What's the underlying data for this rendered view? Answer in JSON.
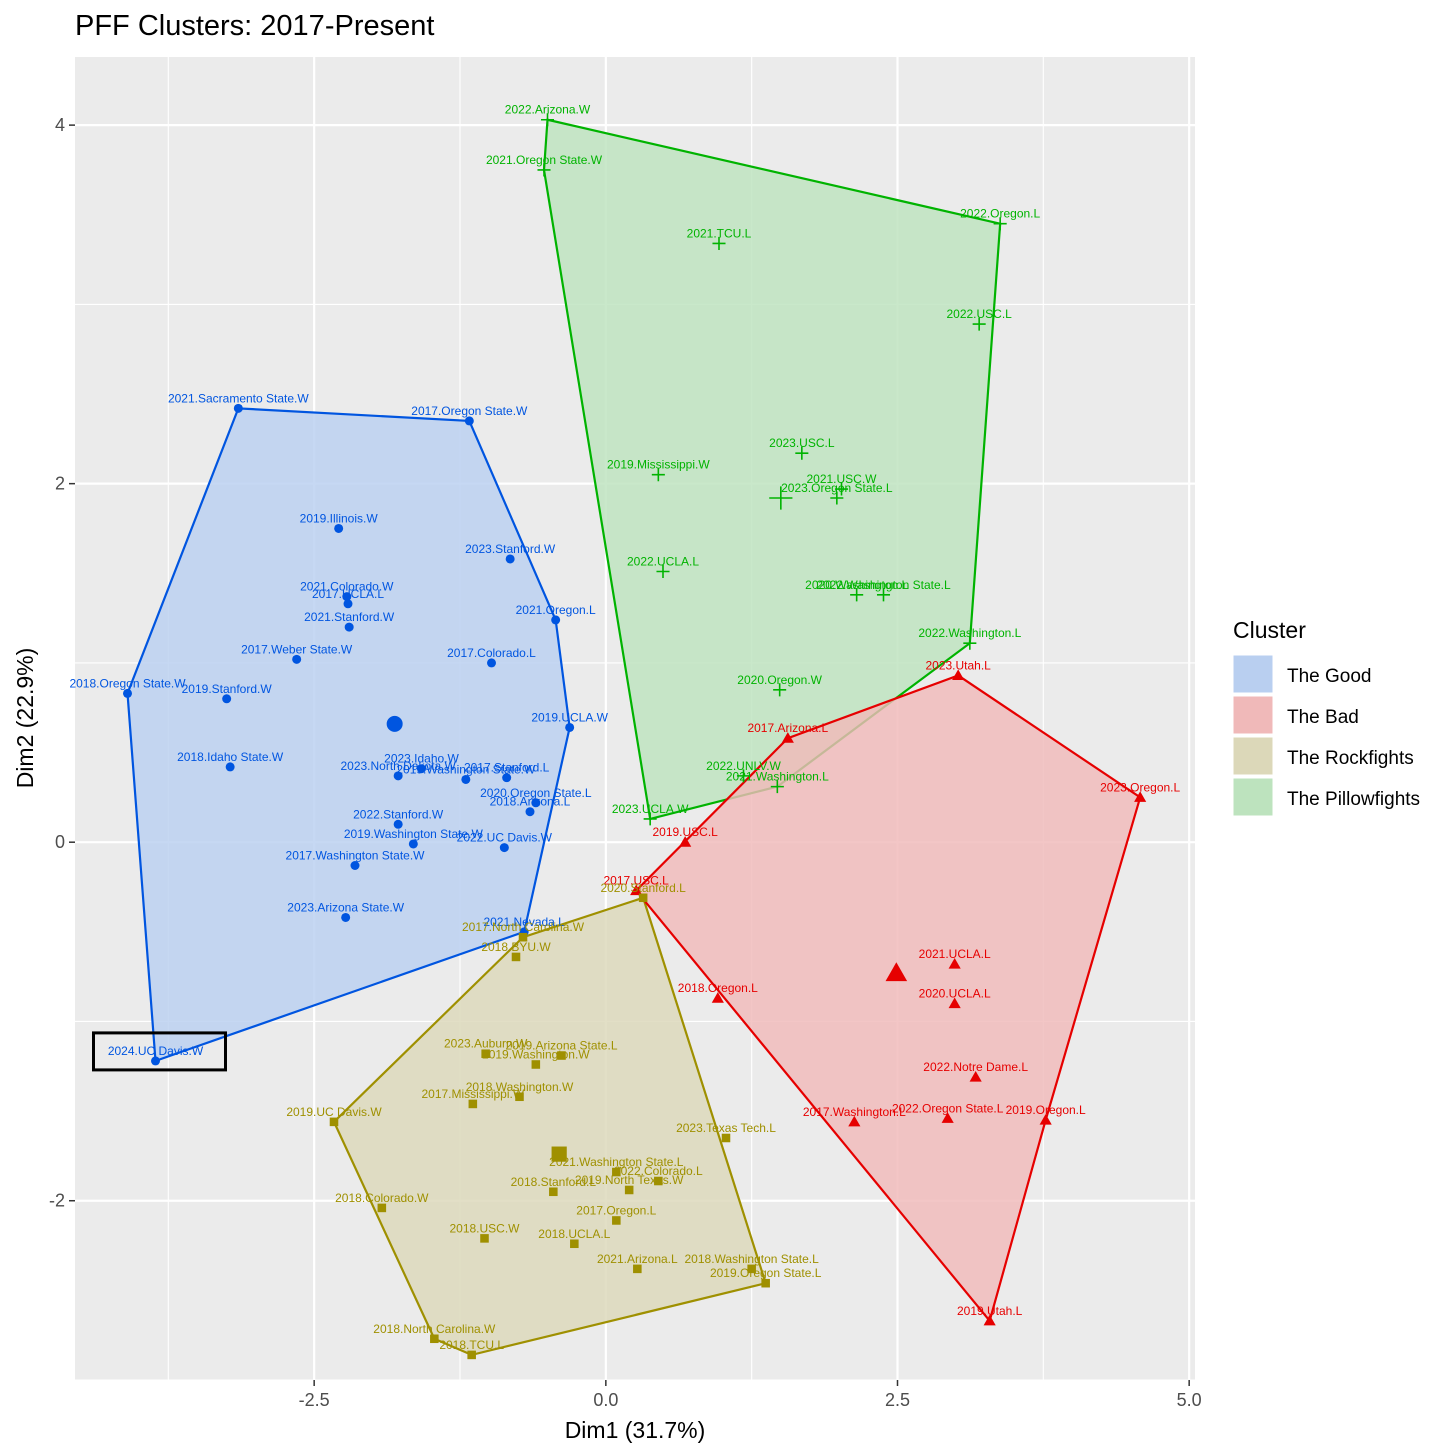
{
  "chart_data": {
    "type": "scatter",
    "title": "PFF Clusters: 2017-Present",
    "xlabel": "Dim1 (31.7%)",
    "ylabel": "Dim2 (22.9%)",
    "xlim": [
      -4.55,
      5.05
    ],
    "ylim": [
      -3.0,
      4.38
    ],
    "x_ticks": [
      -2.5,
      0.0,
      2.5,
      5.0
    ],
    "x_tick_labels": [
      "-2.5",
      "0.0",
      "2.5",
      "5.0"
    ],
    "y_ticks": [
      -2,
      0,
      2,
      4
    ],
    "y_tick_labels": [
      "-2",
      "0",
      "2",
      "4"
    ],
    "grid": true,
    "legend_title": "Cluster",
    "legend_position": "right",
    "highlight": {
      "label": "2024.UC Davis.W",
      "x": -3.86,
      "y": -1.22
    },
    "series": [
      {
        "name": "The Good",
        "color": "#0055e0",
        "fill": "#b9cff0",
        "shape": "circle",
        "hull": [
          [
            -4.1,
            0.83
          ],
          [
            -3.15,
            2.42
          ],
          [
            -1.17,
            2.35
          ],
          [
            -0.43,
            1.24
          ],
          [
            -0.31,
            0.64
          ],
          [
            -0.7,
            -0.5
          ],
          [
            -3.86,
            -1.22
          ]
        ],
        "centroid": [
          -1.81,
          0.66
        ],
        "points": [
          {
            "label": "2021.Sacramento State.W",
            "x": -3.15,
            "y": 2.42
          },
          {
            "label": "2017.Oregon State.W",
            "x": -1.17,
            "y": 2.35
          },
          {
            "label": "2019.Illinois.W",
            "x": -2.29,
            "y": 1.75
          },
          {
            "label": "2023.Stanford.W",
            "x": -0.82,
            "y": 1.58
          },
          {
            "label": "2021.Colorado.W",
            "x": -2.22,
            "y": 1.37
          },
          {
            "label": "2017.UCLA.L",
            "x": -2.21,
            "y": 1.33
          },
          {
            "label": "2021.Stanford.W",
            "x": -2.2,
            "y": 1.2
          },
          {
            "label": "2021.Oregon.L",
            "x": -0.43,
            "y": 1.24
          },
          {
            "label": "2017.Weber State.W",
            "x": -2.65,
            "y": 1.02
          },
          {
            "label": "2017.Colorado.L",
            "x": -0.98,
            "y": 1.0
          },
          {
            "label": "2018.Oregon State.W",
            "x": -4.1,
            "y": 0.83
          },
          {
            "label": "2019.Stanford.W",
            "x": -3.25,
            "y": 0.8
          },
          {
            "label": "2019.UCLA.W",
            "x": -0.31,
            "y": 0.64
          },
          {
            "label": "2018.Idaho State.W",
            "x": -3.22,
            "y": 0.42
          },
          {
            "label": "2023.Idaho.W",
            "x": -1.58,
            "y": 0.41
          },
          {
            "label": "2023.North Dakota.W",
            "x": -1.78,
            "y": 0.37
          },
          {
            "label": "2019.Washington State.W",
            "x": -1.2,
            "y": 0.35
          },
          {
            "label": "2017.Stanford.L",
            "x": -0.85,
            "y": 0.36
          },
          {
            "label": "2020.Oregon State.L",
            "x": -0.6,
            "y": 0.22
          },
          {
            "label": "2018.Arizona.L",
            "x": -0.65,
            "y": 0.17
          },
          {
            "label": "2022.Stanford.W",
            "x": -1.78,
            "y": 0.1
          },
          {
            "label": "2019.Washington State.W",
            "x": -1.65,
            "y": -0.01
          },
          {
            "label": "2022.UC Davis.W",
            "x": -0.87,
            "y": -0.03
          },
          {
            "label": "2017.Washington State.W",
            "x": -2.15,
            "y": -0.13
          },
          {
            "label": "2023.Arizona State.W",
            "x": -2.23,
            "y": -0.42
          },
          {
            "label": "2021.Nevada.L",
            "x": -0.7,
            "y": -0.5
          },
          {
            "label": "2024.UC Davis.W",
            "x": -3.86,
            "y": -1.22
          }
        ]
      },
      {
        "name": "The Bad",
        "color": "#e60000",
        "fill": "#f0b9b9",
        "shape": "triangle",
        "hull": [
          [
            3.02,
            0.93
          ],
          [
            4.58,
            0.25
          ],
          [
            3.77,
            -1.55
          ],
          [
            3.29,
            -2.67
          ],
          [
            0.26,
            -0.27
          ],
          [
            1.56,
            0.58
          ]
        ],
        "centroid": [
          2.49,
          -0.73
        ],
        "points": [
          {
            "label": "2023.Utah.L",
            "x": 3.02,
            "y": 0.93
          },
          {
            "label": "2017.Arizona.L",
            "x": 1.56,
            "y": 0.58
          },
          {
            "label": "2023.Oregon.L",
            "x": 4.58,
            "y": 0.25
          },
          {
            "label": "2019.USC.L",
            "x": 0.68,
            "y": 0.0
          },
          {
            "label": "2017.USC.L",
            "x": 0.26,
            "y": -0.27
          },
          {
            "label": "2021.UCLA.L",
            "x": 2.99,
            "y": -0.68
          },
          {
            "label": "2020.UCLA.L",
            "x": 2.99,
            "y": -0.9
          },
          {
            "label": "2018.Oregon.L",
            "x": 0.96,
            "y": -0.87
          },
          {
            "label": "2022.Notre Dame.L",
            "x": 3.17,
            "y": -1.31
          },
          {
            "label": "2017.Washington.L",
            "x": 2.13,
            "y": -1.56
          },
          {
            "label": "2022.Oregon State.L",
            "x": 2.93,
            "y": -1.54
          },
          {
            "label": "2019.Oregon.L",
            "x": 3.77,
            "y": -1.55
          },
          {
            "label": "2019.Utah.L",
            "x": 3.29,
            "y": -2.67
          }
        ]
      },
      {
        "name": "The Rockfights",
        "color": "#9f9000",
        "fill": "#dcd8b9",
        "shape": "square",
        "hull": [
          [
            0.32,
            -0.31
          ],
          [
            1.37,
            -2.46
          ],
          [
            -1.15,
            -2.86
          ],
          [
            -1.47,
            -2.77
          ],
          [
            -2.33,
            -1.56
          ],
          [
            -0.71,
            -0.53
          ]
        ],
        "centroid": [
          -0.4,
          -1.74
        ],
        "points": [
          {
            "label": "2020.Stanford.L",
            "x": 0.32,
            "y": -0.31
          },
          {
            "label": "2017.North Carolina.W",
            "x": -0.71,
            "y": -0.53
          },
          {
            "label": "2018.BYU.W",
            "x": -0.77,
            "y": -0.64
          },
          {
            "label": "2023.Auburn.W",
            "x": -1.03,
            "y": -1.18
          },
          {
            "label": "2019.Arizona State.L",
            "x": -0.38,
            "y": -1.19
          },
          {
            "label": "2019.Washington.W",
            "x": -0.6,
            "y": -1.24
          },
          {
            "label": "2018.Washington.W",
            "x": -0.74,
            "y": -1.42
          },
          {
            "label": "2017.Mississippi.W",
            "x": -1.14,
            "y": -1.46
          },
          {
            "label": "2019.UC Davis.W",
            "x": -2.33,
            "y": -1.56
          },
          {
            "label": "2023.Texas Tech.L",
            "x": 1.03,
            "y": -1.65
          },
          {
            "label": "2021.Washington State.L",
            "x": 0.09,
            "y": -1.84
          },
          {
            "label": "2022.Colorado.L",
            "x": 0.45,
            "y": -1.89
          },
          {
            "label": "2019.North Texas.W",
            "x": 0.2,
            "y": -1.94
          },
          {
            "label": "2018.Stanford.L",
            "x": -0.45,
            "y": -1.95
          },
          {
            "label": "2018.Colorado.W",
            "x": -1.92,
            "y": -2.04
          },
          {
            "label": "2017.Oregon.L",
            "x": 0.09,
            "y": -2.11
          },
          {
            "label": "2018.USC.W",
            "x": -1.04,
            "y": -2.21
          },
          {
            "label": "2018.UCLA.L",
            "x": -0.27,
            "y": -2.24
          },
          {
            "label": "2021.Arizona.L",
            "x": 0.27,
            "y": -2.38
          },
          {
            "label": "2018.Washington State.L",
            "x": 1.25,
            "y": -2.38
          },
          {
            "label": "2019.Oregon State.L",
            "x": 1.37,
            "y": -2.46
          },
          {
            "label": "2018.North Carolina.W",
            "x": -1.47,
            "y": -2.77
          },
          {
            "label": "2018.TCU.L",
            "x": -1.15,
            "y": -2.86
          }
        ]
      },
      {
        "name": "The Pillowfights",
        "color": "#00b300",
        "fill": "#bde3be",
        "shape": "cross",
        "hull": [
          [
            -0.5,
            4.03
          ],
          [
            3.38,
            3.45
          ],
          [
            3.12,
            1.11
          ],
          [
            1.47,
            0.31
          ],
          [
            0.38,
            0.13
          ],
          [
            -0.53,
            3.75
          ]
        ],
        "centroid": [
          1.5,
          1.92
        ],
        "points": [
          {
            "label": "2022.Arizona.W",
            "x": -0.5,
            "y": 4.03
          },
          {
            "label": "2021.Oregon State.W",
            "x": -0.53,
            "y": 3.75
          },
          {
            "label": "2022.Oregon.L",
            "x": 3.38,
            "y": 3.45
          },
          {
            "label": "2021.TCU.L",
            "x": 0.97,
            "y": 3.34
          },
          {
            "label": "2022.USC.L",
            "x": 3.2,
            "y": 2.89
          },
          {
            "label": "2023.USC.L",
            "x": 1.68,
            "y": 2.17
          },
          {
            "label": "2019.Mississippi.W",
            "x": 0.45,
            "y": 2.05
          },
          {
            "label": "2021.USC.W",
            "x": 2.02,
            "y": 1.97
          },
          {
            "label": "2023.Oregon State.L",
            "x": 1.98,
            "y": 1.92
          },
          {
            "label": "2022.UCLA.L",
            "x": 0.49,
            "y": 1.51
          },
          {
            "label": "2020.Washington.L",
            "x": 2.15,
            "y": 1.38
          },
          {
            "label": "2022.Washington State.L",
            "x": 2.38,
            "y": 1.38
          },
          {
            "label": "2022.Washington.L",
            "x": 3.12,
            "y": 1.11
          },
          {
            "label": "2020.Oregon.W",
            "x": 1.49,
            "y": 0.85
          },
          {
            "label": "2022.UNLV.W",
            "x": 1.18,
            "y": 0.37
          },
          {
            "label": "2021.Washington.L",
            "x": 1.47,
            "y": 0.31
          },
          {
            "label": "2023.UCLA.W",
            "x": 0.38,
            "y": 0.13
          }
        ]
      }
    ]
  }
}
